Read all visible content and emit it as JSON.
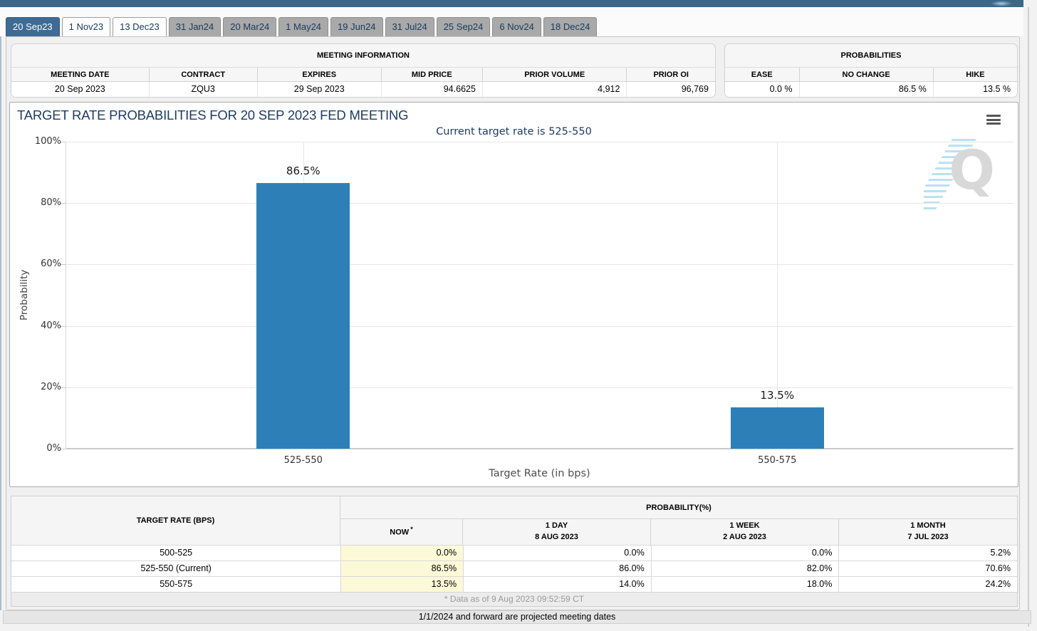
{
  "tabs": [
    {
      "label": "20 Sep23",
      "state": "active"
    },
    {
      "label": "1 Nov23",
      "state": "light"
    },
    {
      "label": "13 Dec23",
      "state": "light"
    },
    {
      "label": "31 Jan24",
      "state": "gray"
    },
    {
      "label": "20 Mar24",
      "state": "gray"
    },
    {
      "label": "1 May24",
      "state": "gray"
    },
    {
      "label": "19 Jun24",
      "state": "gray"
    },
    {
      "label": "31 Jul24",
      "state": "gray"
    },
    {
      "label": "25 Sep24",
      "state": "gray"
    },
    {
      "label": "6 Nov24",
      "state": "gray"
    },
    {
      "label": "18 Dec24",
      "state": "gray"
    }
  ],
  "meeting_info": {
    "title": "MEETING INFORMATION",
    "columns": [
      {
        "label": "MEETING DATE",
        "value": "20 Sep 2023",
        "align": "c"
      },
      {
        "label": "CONTRACT",
        "value": "ZQU3",
        "align": "c"
      },
      {
        "label": "EXPIRES",
        "value": "29 Sep 2023",
        "align": "c"
      },
      {
        "label": "MID PRICE",
        "value": "94.6625",
        "align": "r"
      },
      {
        "label": "PRIOR VOLUME",
        "value": "4,912",
        "align": "r"
      },
      {
        "label": "PRIOR OI",
        "value": "96,769",
        "align": "r"
      }
    ]
  },
  "probabilities": {
    "title": "PROBABILITIES",
    "columns": [
      {
        "label": "EASE",
        "value": "0.0 %"
      },
      {
        "label": "NO CHANGE",
        "value": "86.5 %"
      },
      {
        "label": "HIKE",
        "value": "13.5 %"
      }
    ]
  },
  "chart_data": {
    "type": "bar",
    "title": "TARGET RATE PROBABILITIES FOR 20 SEP 2023 FED MEETING",
    "subtitle": "Current target rate is 525-550",
    "categories": [
      "525-550",
      "550-575"
    ],
    "values": [
      86.5,
      13.5
    ],
    "bar_labels": [
      "86.5%",
      "13.5%"
    ],
    "xlabel": "Target Rate (in bps)",
    "ylabel": "Probability",
    "ylim": [
      0,
      100
    ],
    "yticks": [
      0,
      20,
      40,
      60,
      80,
      100
    ],
    "ytick_labels": [
      "0%",
      "20%",
      "40%",
      "60%",
      "80%",
      "100%"
    ],
    "grid": true,
    "legend": "none",
    "bar_color": "#2d7fb8",
    "watermark_letter": "Q"
  },
  "bottom_table": {
    "col1_header": "TARGET RATE (BPS)",
    "group_header": "PROBABILITY(%)",
    "sub_headers": [
      {
        "line1": "NOW",
        "star": "*",
        "line2": ""
      },
      {
        "line1": "1 DAY",
        "line2": "8 AUG 2023"
      },
      {
        "line1": "1 WEEK",
        "line2": "2 AUG 2023"
      },
      {
        "line1": "1 MONTH",
        "line2": "7 JUL 2023"
      }
    ],
    "rows": [
      {
        "target_rate": "500-525",
        "now": "0.0%",
        "day": "0.0%",
        "week": "0.0%",
        "month": "5.2%"
      },
      {
        "target_rate": "525-550 (Current)",
        "now": "86.5%",
        "day": "86.0%",
        "week": "82.0%",
        "month": "70.6%"
      },
      {
        "target_rate": "550-575",
        "now": "13.5%",
        "day": "14.0%",
        "week": "18.0%",
        "month": "24.2%"
      }
    ]
  },
  "footnotes": {
    "data_as_of": "* Data as of 9 Aug 2023 09:52:59 CT",
    "projected": "1/1/2024 and forward are projected meeting dates"
  },
  "colors": {
    "accent_blue": "#3e6b94",
    "bar_blue": "#2d7fb8",
    "navy_text": "#1c3c64",
    "now_highlight": "#fcf9d6"
  }
}
